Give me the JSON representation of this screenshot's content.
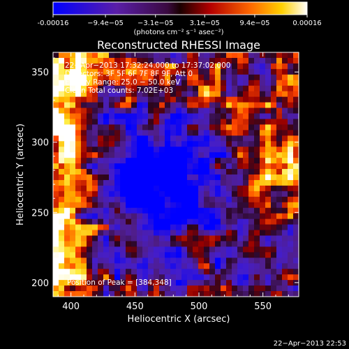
{
  "colorbar": {
    "ticks": [
      "-0.00016",
      "−9.4e−05",
      "−3.1e−05",
      "3.1e−05",
      "9.4e−05",
      "0.00016"
    ],
    "tick_values": [
      -0.00016,
      -9.4e-05,
      -3.1e-05,
      3.1e-05,
      9.4e-05,
      0.00016
    ],
    "range": [
      -0.00016,
      0.00016
    ],
    "units": "(photons cm⁻² s⁻¹ asec⁻²)"
  },
  "chart_data": {
    "type": "heatmap",
    "title": "Reconstructed RHESSI Image",
    "xlabel": "Heliocentric X (arcsec)",
    "ylabel": "Heliocentric Y (arcsec)",
    "xlim": [
      386,
      578
    ],
    "ylim": [
      190,
      364
    ],
    "x_ticks": [
      400,
      450,
      500,
      550
    ],
    "y_ticks": [
      200,
      250,
      300,
      350
    ],
    "x_tick_labels": [
      "400",
      "450",
      "500",
      "550"
    ],
    "y_tick_labels": [
      "200",
      "250",
      "300",
      "350"
    ],
    "annotations": [
      "22−Apr−2013 17:32:24.000 to 17:37:02.000",
      "Detectors: 3F 5F 6F 7F 8F 9F, Att 0",
      "Energy Range: 25.0 − 50.0 keV",
      "Clean    Total counts: 7.02E+03"
    ],
    "peak_label": "Position of Peak = [384,348]",
    "colormap": "red-temperature with blue-purple negative",
    "grid": false
  },
  "footer": {
    "timestamp": "22−Apr−2013 22:53"
  },
  "colors": {
    "background": "#000000",
    "text": "#ffffff",
    "axis": "#ffffff"
  }
}
